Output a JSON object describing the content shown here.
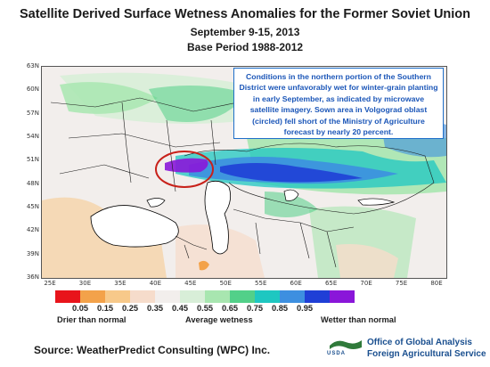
{
  "title": "Satellite Derived Surface Wetness Anomalies for the Former Soviet Union",
  "date_range": "September 9-15, 2013",
  "base_period": "Base Period 1988-2012",
  "map": {
    "lat_labels": [
      "63N",
      "60N",
      "57N",
      "54N",
      "51N",
      "48N",
      "45N",
      "42N",
      "39N",
      "36N"
    ],
    "lon_labels": [
      "25E",
      "30E",
      "35E",
      "40E",
      "45E",
      "50E",
      "55E",
      "60E",
      "65E",
      "70E",
      "75E",
      "80E"
    ],
    "highlight": "Volgograd oblast (circled)",
    "circle_color": "#c8211a"
  },
  "callout": {
    "text": "Conditions in the northern portion of the Southern District were unfavorably wet for winter-grain planting in early September, as indicated by microwave satellite imagery.  Sown area in Volgograd oblast (circled) fell short of the Ministry of Agriculture forecast by nearly 20 percent.",
    "color": "#1b56b8"
  },
  "legend": {
    "colors": [
      "#e8141b",
      "#f3a24a",
      "#f7c98a",
      "#f6dccb",
      "#f2eeec",
      "#d8eed8",
      "#a8e6b0",
      "#52d089",
      "#1ec7c1",
      "#3d8fe0",
      "#1f3fd6",
      "#8a16d9",
      "#ffffff"
    ],
    "ticks": [
      "0.05",
      "0.15",
      "0.25",
      "0.35",
      "0.45",
      "0.55",
      "0.65",
      "0.75",
      "0.85",
      "0.95"
    ],
    "labels": {
      "drier": "Drier than normal",
      "average": "Average wetness",
      "wetter": "Wetter than normal"
    }
  },
  "footer": {
    "source": "Source: WeatherPredict Consulting (WPC) Inc.",
    "usda": "USDA",
    "agency_line1": "Office of Global Analysis",
    "agency_line2": "Foreign Agricultural Service",
    "agency_color": "#1a4f8f"
  }
}
